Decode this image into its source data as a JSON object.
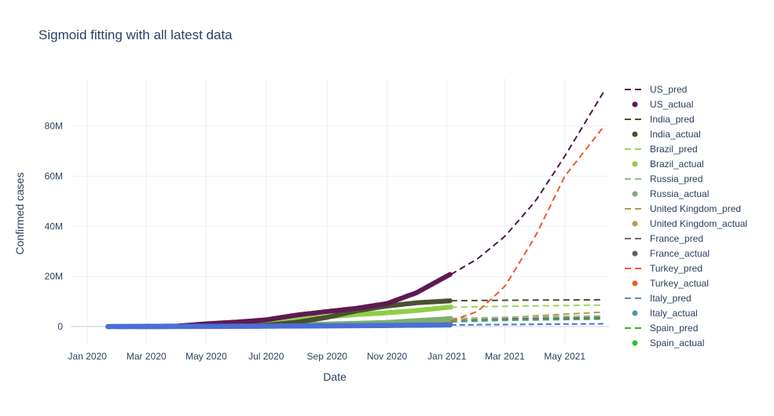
{
  "chart_data": {
    "type": "line",
    "title": "Sigmoid fitting with all latest data",
    "xlabel": "Date",
    "ylabel": "Confirmed cases",
    "x_ticks": [
      "Jan 2020",
      "Mar 2020",
      "May 2020",
      "Jul 2020",
      "Sep 2020",
      "Nov 2020",
      "Jan 2021",
      "Mar 2021",
      "May 2021"
    ],
    "y_ticks": [
      {
        "value": 0,
        "label": "0"
      },
      {
        "value": 20000000,
        "label": "20M"
      },
      {
        "value": 40000000,
        "label": "40M"
      },
      {
        "value": 60000000,
        "label": "60M"
      },
      {
        "value": 80000000,
        "label": "80M"
      }
    ],
    "xlim": [
      "2019-12-15",
      "2021-06-15"
    ],
    "ylim": [
      -7500000,
      99000000
    ],
    "grid": true,
    "legend_position": "right",
    "series": [
      {
        "name": "US_pred",
        "style": "dash",
        "color": "#4a1a4a",
        "points": [
          [
            "2021-01-05",
            20800000
          ],
          [
            "2021-02-01",
            27000000
          ],
          [
            "2021-03-01",
            36000000
          ],
          [
            "2021-04-01",
            50000000
          ],
          [
            "2021-05-01",
            68000000
          ],
          [
            "2021-06-10",
            94000000
          ]
        ]
      },
      {
        "name": "US_actual",
        "style": "marker",
        "color": "#5e1a52",
        "points": [
          [
            "2020-02-01",
            0
          ],
          [
            "2020-04-01",
            200000
          ],
          [
            "2020-05-01",
            1100000
          ],
          [
            "2020-06-01",
            1800000
          ],
          [
            "2020-07-01",
            2700000
          ],
          [
            "2020-08-01",
            4600000
          ],
          [
            "2020-09-01",
            6000000
          ],
          [
            "2020-10-01",
            7300000
          ],
          [
            "2020-11-01",
            9200000
          ],
          [
            "2020-12-01",
            13500000
          ],
          [
            "2021-01-05",
            21000000
          ]
        ]
      },
      {
        "name": "India_pred",
        "style": "dash",
        "color": "#4b5030",
        "points": [
          [
            "2021-01-05",
            10300000
          ],
          [
            "2021-03-01",
            10500000
          ],
          [
            "2021-06-10",
            10700000
          ]
        ]
      },
      {
        "name": "India_actual",
        "style": "marker",
        "color": "#4b5030",
        "points": [
          [
            "2020-02-01",
            0
          ],
          [
            "2020-05-01",
            60000
          ],
          [
            "2020-06-01",
            190000
          ],
          [
            "2020-07-01",
            590000
          ],
          [
            "2020-08-01",
            1700000
          ],
          [
            "2020-09-01",
            3700000
          ],
          [
            "2020-10-01",
            6300000
          ],
          [
            "2020-11-01",
            8200000
          ],
          [
            "2020-12-01",
            9500000
          ],
          [
            "2021-01-05",
            10300000
          ]
        ]
      },
      {
        "name": "Brazil_pred",
        "style": "dash",
        "color": "#9bd65a",
        "points": [
          [
            "2021-01-05",
            7700000
          ],
          [
            "2021-03-01",
            8100000
          ],
          [
            "2021-06-10",
            8600000
          ]
        ]
      },
      {
        "name": "Brazil_actual",
        "style": "marker",
        "color": "#8fce46",
        "points": [
          [
            "2020-03-01",
            0
          ],
          [
            "2020-05-01",
            90000
          ],
          [
            "2020-06-01",
            500000
          ],
          [
            "2020-07-01",
            1400000
          ],
          [
            "2020-08-01",
            2700000
          ],
          [
            "2020-09-01",
            3900000
          ],
          [
            "2020-10-01",
            4800000
          ],
          [
            "2020-11-01",
            5500000
          ],
          [
            "2020-12-01",
            6400000
          ],
          [
            "2021-01-05",
            7800000
          ]
        ]
      },
      {
        "name": "Russia_pred",
        "style": "dash",
        "color": "#8dbf8b",
        "points": [
          [
            "2021-01-05",
            3200000
          ],
          [
            "2021-03-01",
            3700000
          ],
          [
            "2021-06-10",
            4300000
          ]
        ]
      },
      {
        "name": "Russia_actual",
        "style": "marker",
        "color": "#7aaf6e",
        "points": [
          [
            "2020-03-01",
            0
          ],
          [
            "2020-05-01",
            110000
          ],
          [
            "2020-07-01",
            650000
          ],
          [
            "2020-09-01",
            1000000
          ],
          [
            "2020-11-01",
            1650000
          ],
          [
            "2021-01-05",
            3200000
          ]
        ]
      },
      {
        "name": "United Kingdom_pred",
        "style": "dash",
        "color": "#b89a45",
        "points": [
          [
            "2021-01-05",
            2800000
          ],
          [
            "2021-03-01",
            3600000
          ],
          [
            "2021-06-10",
            5800000
          ]
        ]
      },
      {
        "name": "United Kingdom_actual",
        "style": "marker",
        "color": "#b89a45",
        "points": [
          [
            "2020-03-01",
            0
          ],
          [
            "2020-05-01",
            180000
          ],
          [
            "2020-09-01",
            340000
          ],
          [
            "2020-11-01",
            1000000
          ],
          [
            "2021-01-05",
            2800000
          ]
        ]
      },
      {
        "name": "France_pred",
        "style": "dash",
        "color": "#6e6a6a",
        "points": [
          [
            "2021-01-05",
            2700000
          ],
          [
            "2021-03-01",
            3100000
          ],
          [
            "2021-06-10",
            3600000
          ]
        ]
      },
      {
        "name": "France_actual",
        "style": "marker",
        "color": "#5f5f5f",
        "points": [
          [
            "2020-03-01",
            0
          ],
          [
            "2020-05-01",
            170000
          ],
          [
            "2020-09-01",
            350000
          ],
          [
            "2020-11-01",
            1400000
          ],
          [
            "2021-01-05",
            2700000
          ]
        ]
      },
      {
        "name": "Turkey_pred",
        "style": "dash",
        "color": "#f05a28",
        "points": [
          [
            "2021-01-05",
            2300000
          ],
          [
            "2021-02-01",
            6000000
          ],
          [
            "2021-03-01",
            16000000
          ],
          [
            "2021-04-01",
            36000000
          ],
          [
            "2021-05-01",
            60000000
          ],
          [
            "2021-06-10",
            80000000
          ]
        ]
      },
      {
        "name": "Turkey_actual",
        "style": "marker",
        "color": "#f05a28",
        "points": [
          [
            "2020-03-15",
            0
          ],
          [
            "2020-05-01",
            120000
          ],
          [
            "2020-09-01",
            280000
          ],
          [
            "2020-11-01",
            400000
          ],
          [
            "2021-01-05",
            2300000
          ]
        ]
      },
      {
        "name": "Italy_pred",
        "style": "dash",
        "color": "#5f8fb0",
        "points": [
          [
            "2021-01-05",
            2200000
          ],
          [
            "2021-03-01",
            2900000
          ],
          [
            "2021-06-10",
            3700000
          ]
        ]
      },
      {
        "name": "Italy_actual",
        "style": "marker",
        "color": "#4a9aa0",
        "points": [
          [
            "2020-02-20",
            0
          ],
          [
            "2020-05-01",
            210000
          ],
          [
            "2020-09-01",
            270000
          ],
          [
            "2020-11-01",
            700000
          ],
          [
            "2021-01-05",
            2200000
          ]
        ]
      },
      {
        "name": "Spain_pred",
        "style": "dash",
        "color": "#3aaa3a",
        "points": [
          [
            "2021-01-05",
            1900000
          ],
          [
            "2021-03-01",
            2500000
          ],
          [
            "2021-06-10",
            3000000
          ]
        ]
      },
      {
        "name": "Spain_actual",
        "style": "marker",
        "color": "#2fc02f",
        "points": [
          [
            "2020-02-20",
            0
          ],
          [
            "2020-05-01",
            210000
          ],
          [
            "2020-09-01",
            470000
          ],
          [
            "2020-11-01",
            1200000
          ],
          [
            "2021-01-05",
            1900000
          ]
        ]
      }
    ],
    "bottom_series_color": "#4a6fd6",
    "bottom_series_points": [
      [
        "2020-01-22",
        0
      ],
      [
        "2020-06-01",
        100000
      ],
      [
        "2020-09-01",
        300000
      ],
      [
        "2020-11-01",
        450000
      ],
      [
        "2021-01-05",
        650000
      ]
    ],
    "bottom_series_pred_points": [
      [
        "2021-01-05",
        650000
      ],
      [
        "2021-06-10",
        1100000
      ]
    ]
  }
}
